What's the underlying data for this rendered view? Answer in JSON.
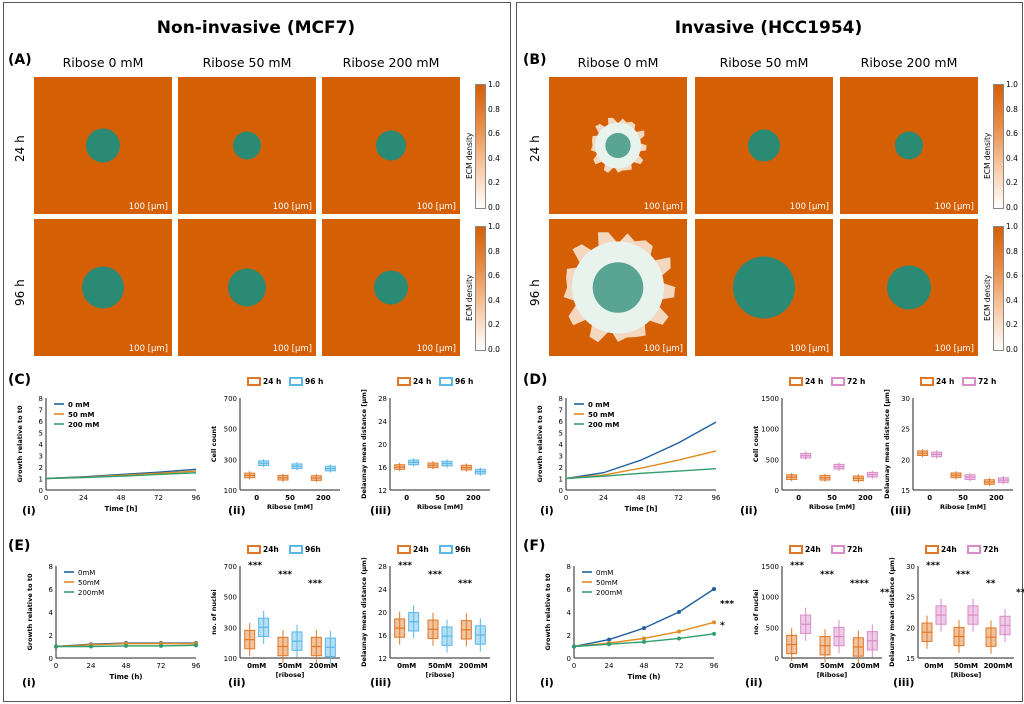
{
  "left": {
    "title": "Non-invasive (MCF7)",
    "panel_A": "(A)",
    "panel_C": "(C)",
    "panel_E": "(E)",
    "columns": [
      "Ribose 0 mM",
      "Ribose 50 mM",
      "Ribose 200 mM"
    ],
    "rows": [
      "24 h",
      "96 h"
    ],
    "scale_label": "100 [μm]"
  },
  "right": {
    "title": "Invasive (HCC1954)",
    "panel_B": "(B)",
    "panel_D": "(D)",
    "panel_F": "(F)",
    "columns": [
      "Ribose 0 mM",
      "Ribose 50 mM",
      "Ribose 200 mM"
    ],
    "rows": [
      "24 h",
      "96 h"
    ],
    "scale_label": "100 [μm]"
  },
  "colorbar": {
    "label": "ECM density",
    "ticks": [
      "1.0",
      "0.8",
      "0.6",
      "0.4",
      "0.2",
      "0.0"
    ]
  },
  "sublabels": [
    "(i)",
    "(ii)",
    "(iii)"
  ],
  "colors": {
    "ecm": "#d45f05",
    "cell": "#2a8a74",
    "c0": "#1f5f9e",
    "c50": "#e08a1e",
    "c200": "#2e9e6e",
    "h24": "#e07828",
    "h96": "#5ab7e6",
    "h72": "#d98cc8"
  },
  "chart_data": [
    {
      "id": "C-i",
      "type": "line",
      "xlabel": "Time [h]",
      "ylabel": "Growth relative to t0",
      "xticks": [
        0,
        24,
        48,
        72,
        96
      ],
      "ylim": [
        0,
        8
      ],
      "yticks": [
        0,
        1,
        2,
        3,
        4,
        5,
        6,
        7,
        8
      ],
      "series": [
        {
          "name": "0 mM",
          "x": [
            0,
            24,
            48,
            72,
            96
          ],
          "values": [
            1,
            1.15,
            1.35,
            1.55,
            1.8
          ]
        },
        {
          "name": "50 mM",
          "x": [
            0,
            24,
            48,
            72,
            96
          ],
          "values": [
            1,
            1.1,
            1.28,
            1.45,
            1.65
          ]
        },
        {
          "name": "200 mM",
          "x": [
            0,
            24,
            48,
            72,
            96
          ],
          "values": [
            1,
            1.08,
            1.2,
            1.35,
            1.5
          ]
        }
      ]
    },
    {
      "id": "C-ii",
      "type": "box",
      "ylabel": "Cell count",
      "xlabel": "Ribose [mM]",
      "categories": [
        "0",
        "50",
        "200"
      ],
      "ylim": [
        100,
        700
      ],
      "yticks": [
        100,
        300,
        500,
        700
      ],
      "legend": [
        "24 h",
        "96 h"
      ],
      "series": [
        {
          "name": "24 h",
          "values": [
            195,
            180,
            178
          ]
        },
        {
          "name": "96 h",
          "values": [
            275,
            255,
            240
          ]
        }
      ]
    },
    {
      "id": "C-iii",
      "type": "box",
      "ylabel": "Delaunay mean distance [μm]",
      "xlabel": "Ribose [mM]",
      "categories": [
        "0",
        "50",
        "200"
      ],
      "ylim": [
        12,
        28
      ],
      "yticks": [
        12,
        16,
        20,
        24,
        28
      ],
      "legend": [
        "24 h",
        "96 h"
      ],
      "series": [
        {
          "name": "24 h",
          "values": [
            16.0,
            16.3,
            15.9
          ]
        },
        {
          "name": "96 h",
          "values": [
            16.8,
            16.6,
            15.2
          ]
        }
      ]
    },
    {
      "id": "D-i",
      "type": "line",
      "xlabel": "Time [h]",
      "ylabel": "Growth relative to t0",
      "xticks": [
        0,
        24,
        48,
        72,
        96
      ],
      "ylim": [
        0,
        8
      ],
      "yticks": [
        0,
        1,
        2,
        3,
        4,
        5,
        6,
        7,
        8
      ],
      "series": [
        {
          "name": "0 mM",
          "x": [
            0,
            24,
            48,
            72,
            96
          ],
          "values": [
            1,
            1.5,
            2.6,
            4.1,
            5.9
          ]
        },
        {
          "name": "50 mM",
          "x": [
            0,
            24,
            48,
            72,
            96
          ],
          "values": [
            1,
            1.3,
            1.9,
            2.6,
            3.4
          ]
        },
        {
          "name": "200 mM",
          "x": [
            0,
            24,
            48,
            72,
            96
          ],
          "values": [
            1,
            1.2,
            1.45,
            1.65,
            1.85
          ]
        }
      ]
    },
    {
      "id": "D-ii",
      "type": "box",
      "ylabel": "Cell count",
      "xlabel": "Ribose [mM]",
      "categories": [
        "0",
        "50",
        "200"
      ],
      "ylim": [
        0,
        1500
      ],
      "yticks": [
        0,
        500,
        1000,
        1500
      ],
      "legend": [
        "24 h",
        "72 h"
      ],
      "series": [
        {
          "name": "24 h",
          "values": [
            210,
            200,
            190
          ]
        },
        {
          "name": "72 h",
          "values": [
            560,
            380,
            250
          ]
        }
      ]
    },
    {
      "id": "D-iii",
      "type": "box",
      "ylabel": "Delaunay mean distance [μm]",
      "xlabel": "Ribose [mM]",
      "categories": [
        "0",
        "50",
        "200"
      ],
      "ylim": [
        15,
        30
      ],
      "yticks": [
        15,
        20,
        25,
        30
      ],
      "legend": [
        "24 h",
        "72 h"
      ],
      "series": [
        {
          "name": "24 h",
          "values": [
            21,
            17.4,
            16.3
          ]
        },
        {
          "name": "72 h",
          "values": [
            20.8,
            17.1,
            16.6
          ]
        }
      ]
    },
    {
      "id": "E-i",
      "type": "line",
      "xlabel": "Time (h)",
      "ylabel": "Growth relative to t0",
      "xticks": [
        0,
        24,
        48,
        72,
        96
      ],
      "ylim": [
        0,
        8
      ],
      "yticks": [
        0,
        2,
        4,
        6,
        8
      ],
      "series": [
        {
          "name": "0mM",
          "x": [
            0,
            24,
            48,
            72,
            96
          ],
          "values": [
            1,
            1.2,
            1.3,
            1.3,
            1.3
          ]
        },
        {
          "name": "50mM",
          "x": [
            0,
            24,
            48,
            72,
            96
          ],
          "values": [
            1,
            1.15,
            1.25,
            1.25,
            1.25
          ]
        },
        {
          "name": "200mM",
          "x": [
            0,
            24,
            48,
            72,
            96
          ],
          "values": [
            1,
            1.0,
            1.05,
            1.05,
            1.1
          ]
        }
      ]
    },
    {
      "id": "E-ii",
      "type": "box",
      "ylabel": "no. of nuclei",
      "xlabel": "[ribose]",
      "categories": [
        "0mM",
        "50mM",
        "200mM"
      ],
      "ylim": [
        100,
        700
      ],
      "yticks": [
        100,
        300,
        500,
        700
      ],
      "legend": [
        "24h",
        "96h"
      ],
      "sig": [
        "***",
        "***",
        "***"
      ],
      "series": [
        {
          "name": "24h",
          "values": [
            220,
            175,
            175
          ]
        },
        {
          "name": "96h",
          "values": [
            300,
            210,
            170
          ]
        }
      ]
    },
    {
      "id": "E-iii",
      "type": "box",
      "ylabel": "Delaunay mean distance (μm)",
      "xlabel": "[ribose]",
      "categories": [
        "0mM",
        "50mM",
        "200mM"
      ],
      "ylim": [
        12,
        28
      ],
      "yticks": [
        12,
        16,
        20,
        24,
        28
      ],
      "legend": [
        "24h",
        "96h"
      ],
      "sig": [
        "***",
        "***",
        "***"
      ],
      "series": [
        {
          "name": "24h",
          "values": [
            17.2,
            17.0,
            16.9
          ]
        },
        {
          "name": "96h",
          "values": [
            18.3,
            15.8,
            16.0
          ]
        }
      ]
    },
    {
      "id": "F-i",
      "type": "line",
      "xlabel": "Time (h)",
      "ylabel": "Growth relative to t0",
      "xticks": [
        0,
        24,
        48,
        72,
        96
      ],
      "ylim": [
        0,
        8
      ],
      "yticks": [
        0,
        2,
        4,
        6,
        8
      ],
      "sig": [
        "***",
        "*"
      ],
      "series": [
        {
          "name": "0mM",
          "x": [
            0,
            24,
            48,
            72,
            96
          ],
          "values": [
            1,
            1.6,
            2.6,
            4.0,
            6.0
          ]
        },
        {
          "name": "50mM",
          "x": [
            0,
            24,
            48,
            72,
            96
          ],
          "values": [
            1,
            1.3,
            1.7,
            2.3,
            3.1
          ]
        },
        {
          "name": "200mM",
          "x": [
            0,
            24,
            48,
            72,
            96
          ],
          "values": [
            1,
            1.2,
            1.4,
            1.7,
            2.1
          ]
        }
      ]
    },
    {
      "id": "F-ii",
      "type": "box",
      "ylabel": "no. of nuclei",
      "xlabel": "[Ribose]",
      "categories": [
        "0mM",
        "50mM",
        "200mM"
      ],
      "ylim": [
        0,
        1500
      ],
      "yticks": [
        0,
        500,
        1000,
        1500
      ],
      "legend": [
        "24h",
        "72h"
      ],
      "sig": [
        "***",
        "***",
        "****",
        "**"
      ],
      "series": [
        {
          "name": "24h",
          "values": [
            220,
            200,
            180
          ]
        },
        {
          "name": "72h",
          "values": [
            550,
            350,
            280
          ]
        }
      ]
    },
    {
      "id": "F-iii",
      "type": "box",
      "ylabel": "Delaunay mean distance (μm)",
      "xlabel": "[Ribose]",
      "categories": [
        "0mM",
        "50mM",
        "200mM"
      ],
      "ylim": [
        15,
        30
      ],
      "yticks": [
        15,
        20,
        25,
        30
      ],
      "legend": [
        "24h",
        "72h"
      ],
      "sig": [
        "***",
        "***",
        "**",
        "**"
      ],
      "series": [
        {
          "name": "24h",
          "values": [
            19.2,
            18.5,
            18.4
          ]
        },
        {
          "name": "72h",
          "values": [
            22.0,
            22.0,
            20.3
          ]
        }
      ]
    }
  ]
}
